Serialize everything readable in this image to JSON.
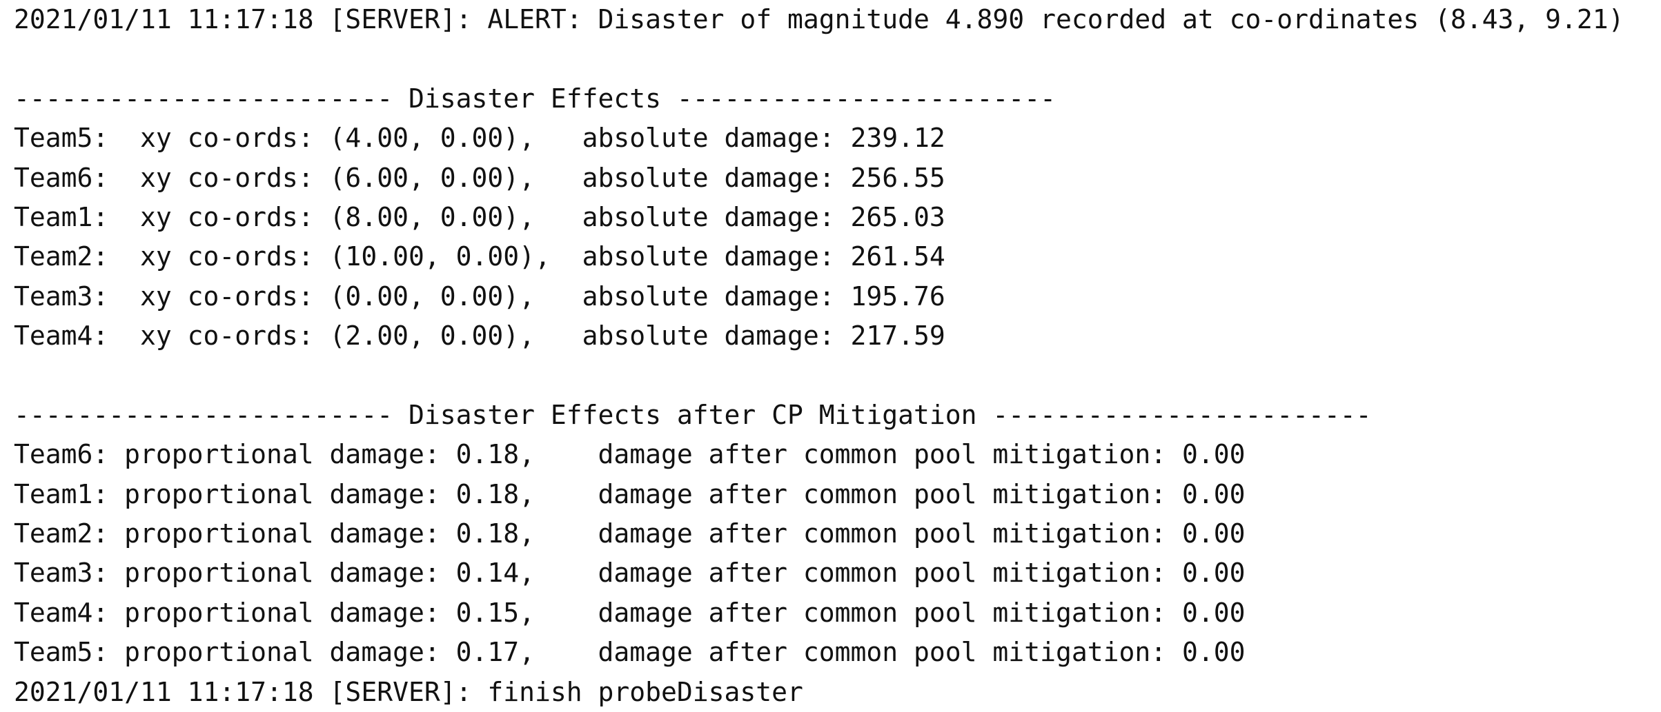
{
  "log": {
    "alert_line": "2021/01/11 11:17:18 [SERVER]: ALERT: Disaster of magnitude 4.890 recorded at co-ordinates (8.43, 9.21)",
    "effects_header": "------------------------ Disaster Effects ------------------------",
    "effects": [
      "Team5:  xy co-ords: (4.00, 0.00),   absolute damage: 239.12",
      "Team6:  xy co-ords: (6.00, 0.00),   absolute damage: 256.55",
      "Team1:  xy co-ords: (8.00, 0.00),   absolute damage: 265.03",
      "Team2:  xy co-ords: (10.00, 0.00),  absolute damage: 261.54",
      "Team3:  xy co-ords: (0.00, 0.00),   absolute damage: 195.76",
      "Team4:  xy co-ords: (2.00, 0.00),   absolute damage: 217.59"
    ],
    "mitigation_header": "------------------------ Disaster Effects after CP Mitigation ------------------------",
    "mitigation": [
      "Team6: proportional damage: 0.18,    damage after common pool mitigation: 0.00",
      "Team1: proportional damage: 0.18,    damage after common pool mitigation: 0.00",
      "Team2: proportional damage: 0.18,    damage after common pool mitigation: 0.00",
      "Team3: proportional damage: 0.14,    damage after common pool mitigation: 0.00",
      "Team4: proportional damage: 0.15,    damage after common pool mitigation: 0.00",
      "Team5: proportional damage: 0.17,    damage after common pool mitigation: 0.00"
    ],
    "finish_line": "2021/01/11 11:17:18 [SERVER]: finish probeDisaster"
  }
}
